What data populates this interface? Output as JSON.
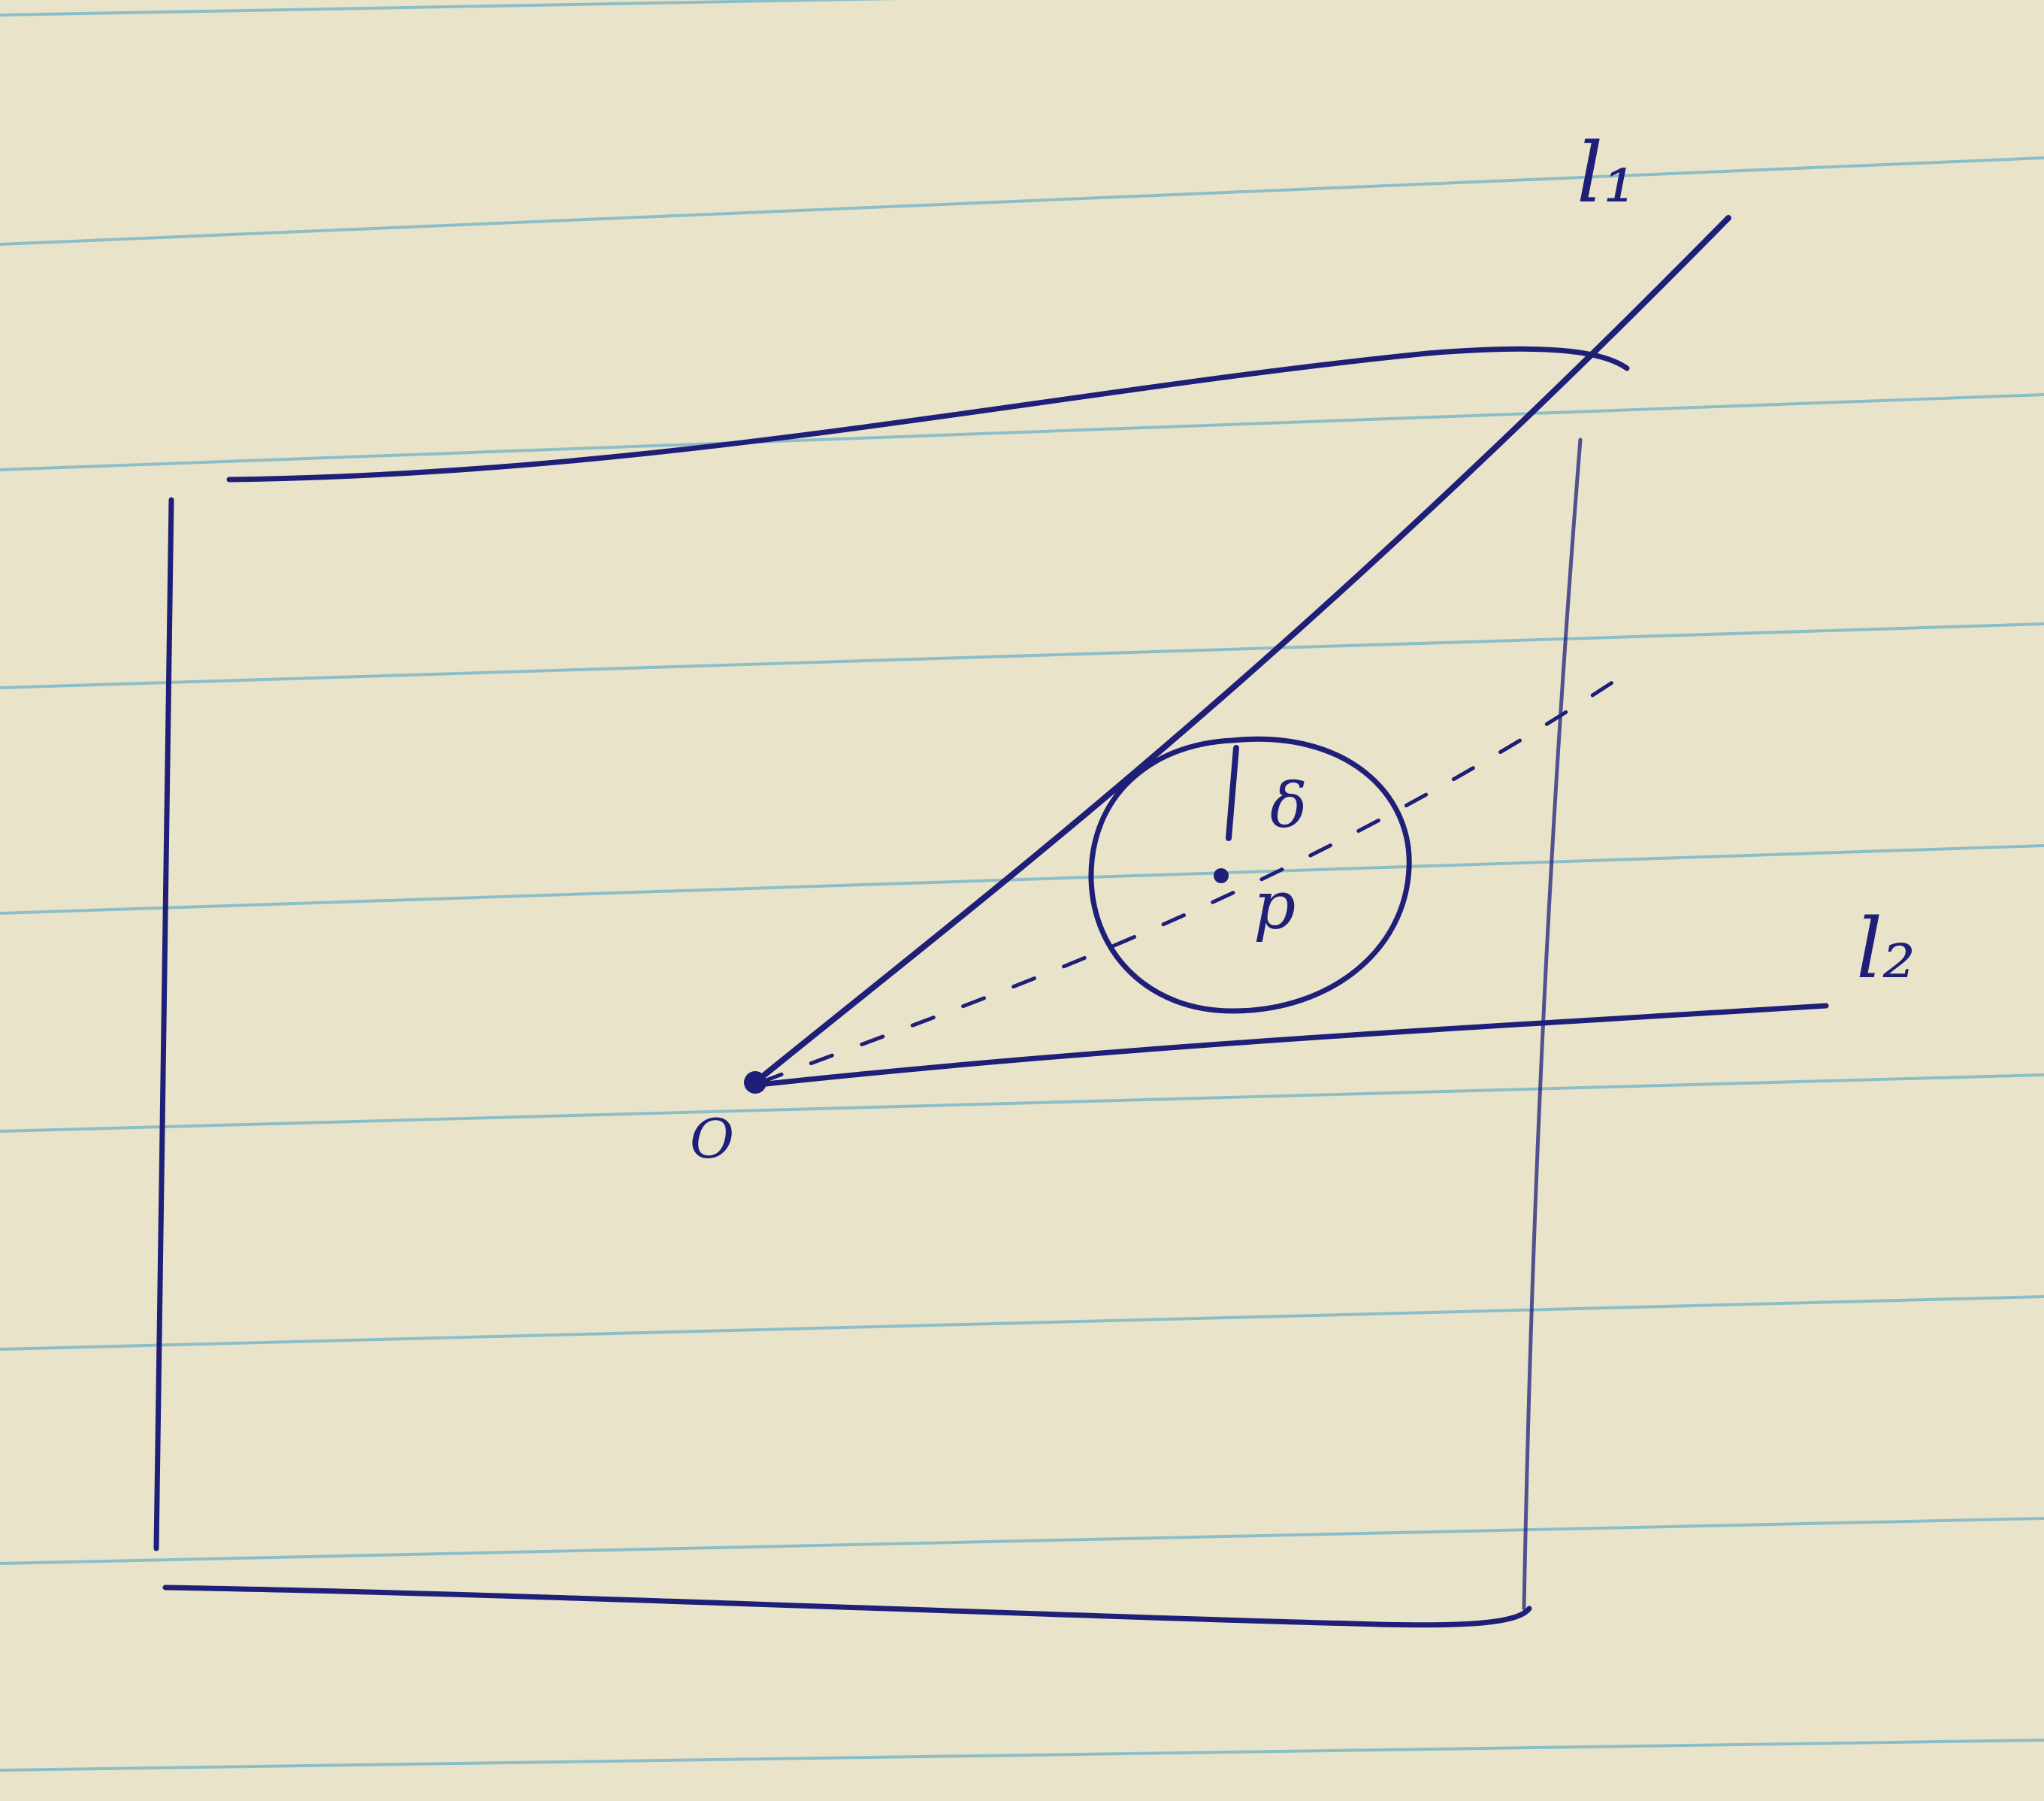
{
  "diagram": {
    "labels": {
      "line_l1": "l₁",
      "line_l2": "l₂",
      "origin": "O",
      "radius": "δ",
      "center": "p"
    }
  },
  "colors": {
    "paper": "#e9e4c9",
    "ruling": "#6fb2c8",
    "ink": "#1f1f7a"
  }
}
